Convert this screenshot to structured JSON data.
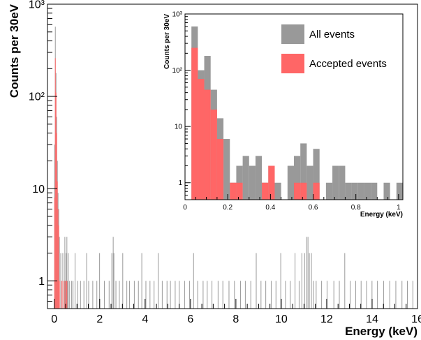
{
  "colors": {
    "all_events": "#999999",
    "accepted_events": "#ff6666",
    "axis": "#000000",
    "background": "#ffffff"
  },
  "chart_data": [
    {
      "type": "bar",
      "title": "",
      "xlabel": "Energy (keV)",
      "ylabel": "Counts per 30eV",
      "y_scale": "log",
      "xlim": [
        -0.3,
        16
      ],
      "ylim": [
        0.5,
        1000
      ],
      "x_ticks": [
        "0",
        "2",
        "4",
        "6",
        "8",
        "10",
        "12",
        "14",
        "16"
      ],
      "y_ticks": [
        "1",
        "10",
        "10²",
        "10³"
      ],
      "bin_width_keV": 0.03,
      "grid": false,
      "legend": "none",
      "series": [
        {
          "name": "All events",
          "color": "#999999",
          "bins": [
            [
              0.0,
              30
            ],
            [
              0.03,
              570
            ],
            [
              0.06,
              180
            ],
            [
              0.09,
              60
            ],
            [
              0.12,
              20
            ],
            [
              0.15,
              9
            ],
            [
              0.18,
              6
            ],
            [
              0.21,
              3
            ],
            [
              0.27,
              2
            ],
            [
              0.3,
              1
            ],
            [
              0.36,
              2
            ],
            [
              0.42,
              1
            ],
            [
              0.45,
              3
            ],
            [
              0.48,
              1
            ],
            [
              0.51,
              2
            ],
            [
              0.54,
              3
            ],
            [
              0.57,
              1
            ],
            [
              0.6,
              2
            ],
            [
              0.66,
              1
            ],
            [
              0.75,
              1
            ],
            [
              0.81,
              1
            ],
            [
              0.9,
              2
            ],
            [
              1.02,
              1
            ],
            [
              1.14,
              1
            ],
            [
              1.29,
              1
            ],
            [
              1.41,
              2
            ],
            [
              1.5,
              1
            ],
            [
              1.68,
              1
            ],
            [
              1.86,
              1
            ],
            [
              1.98,
              2
            ],
            [
              2.19,
              1
            ],
            [
              2.4,
              1
            ],
            [
              2.52,
              2
            ],
            [
              2.58,
              3
            ],
            [
              2.61,
              2
            ],
            [
              2.7,
              1
            ],
            [
              2.85,
              1
            ],
            [
              3.0,
              2
            ],
            [
              3.18,
              1
            ],
            [
              3.3,
              1
            ],
            [
              3.51,
              1
            ],
            [
              3.69,
              1
            ],
            [
              3.84,
              2
            ],
            [
              4.02,
              1
            ],
            [
              4.2,
              1
            ],
            [
              4.38,
              1
            ],
            [
              4.56,
              2
            ],
            [
              4.74,
              1
            ],
            [
              4.95,
              1
            ],
            [
              5.1,
              1
            ],
            [
              5.31,
              1
            ],
            [
              5.49,
              1
            ],
            [
              5.73,
              1
            ],
            [
              5.94,
              1
            ],
            [
              6.12,
              2
            ],
            [
              6.3,
              1
            ],
            [
              6.54,
              1
            ],
            [
              6.72,
              1
            ],
            [
              6.93,
              1
            ],
            [
              7.2,
              1
            ],
            [
              7.41,
              1
            ],
            [
              7.68,
              1
            ],
            [
              7.92,
              1
            ],
            [
              8.19,
              1
            ],
            [
              8.4,
              1
            ],
            [
              8.64,
              1
            ],
            [
              8.88,
              2
            ],
            [
              9.09,
              1
            ],
            [
              9.3,
              1
            ],
            [
              9.54,
              1
            ],
            [
              9.75,
              1
            ],
            [
              9.96,
              2
            ],
            [
              10.17,
              1
            ],
            [
              10.38,
              1
            ],
            [
              10.59,
              2
            ],
            [
              10.77,
              1
            ],
            [
              10.89,
              2
            ],
            [
              11.01,
              2
            ],
            [
              11.1,
              3
            ],
            [
              11.16,
              3
            ],
            [
              11.22,
              2
            ],
            [
              11.31,
              2
            ],
            [
              11.4,
              1
            ],
            [
              11.52,
              1
            ],
            [
              11.76,
              1
            ],
            [
              12.0,
              1
            ],
            [
              12.3,
              1
            ],
            [
              12.54,
              1
            ],
            [
              12.78,
              2
            ],
            [
              13.02,
              1
            ],
            [
              13.26,
              1
            ],
            [
              13.5,
              1
            ],
            [
              13.74,
              1
            ],
            [
              13.98,
              1
            ],
            [
              14.22,
              1
            ],
            [
              14.49,
              1
            ],
            [
              14.76,
              1
            ],
            [
              15.03,
              1
            ],
            [
              15.3,
              1
            ],
            [
              15.54,
              1
            ],
            [
              15.78,
              1
            ]
          ]
        },
        {
          "name": "Accepted events",
          "color": "#ff6666",
          "bins": [
            [
              0.0,
              8
            ],
            [
              0.03,
              260
            ],
            [
              0.06,
              110
            ],
            [
              0.09,
              40
            ],
            [
              0.12,
              12
            ],
            [
              0.15,
              6
            ],
            [
              0.18,
              4
            ],
            [
              0.21,
              1
            ],
            [
              0.3,
              1
            ],
            [
              0.36,
              1
            ],
            [
              0.45,
              1
            ],
            [
              0.51,
              1
            ],
            [
              0.54,
              1
            ]
          ]
        }
      ]
    },
    {
      "type": "bar",
      "title": "",
      "xlabel": "Energy (keV)",
      "ylabel": "Counts per 30eV",
      "y_scale": "log",
      "xlim": [
        0,
        1.02
      ],
      "ylim": [
        0.5,
        1000
      ],
      "x_ticks": [
        "0",
        "0.2",
        "0.4",
        "0.6",
        "0.8",
        "1"
      ],
      "y_ticks": [
        "1",
        "10",
        "10²",
        "10³"
      ],
      "bin_width_keV": 0.03,
      "grid": false,
      "legend": "top-right",
      "series": [
        {
          "name": "All events",
          "color": "#999999",
          "bins": [
            [
              0.03,
              600
            ],
            [
              0.06,
              100
            ],
            [
              0.09,
              180
            ],
            [
              0.12,
              45
            ],
            [
              0.15,
              14
            ],
            [
              0.18,
              6
            ],
            [
              0.21,
              1
            ],
            [
              0.24,
              2
            ],
            [
              0.27,
              3
            ],
            [
              0.3,
              2
            ],
            [
              0.33,
              3
            ],
            [
              0.36,
              1
            ],
            [
              0.39,
              2
            ],
            [
              0.42,
              1
            ],
            [
              0.48,
              2
            ],
            [
              0.51,
              3
            ],
            [
              0.54,
              5
            ],
            [
              0.57,
              2
            ],
            [
              0.6,
              4
            ],
            [
              0.66,
              1
            ],
            [
              0.69,
              2
            ],
            [
              0.72,
              2
            ],
            [
              0.75,
              1
            ],
            [
              0.78,
              1
            ],
            [
              0.81,
              1
            ],
            [
              0.84,
              1
            ],
            [
              0.87,
              1
            ],
            [
              0.93,
              1
            ],
            [
              0.99,
              1
            ]
          ]
        },
        {
          "name": "Accepted events",
          "color": "#ff6666",
          "bins": [
            [
              0.03,
              250
            ],
            [
              0.06,
              70
            ],
            [
              0.09,
              45
            ],
            [
              0.12,
              20
            ],
            [
              0.15,
              6
            ],
            [
              0.21,
              1
            ],
            [
              0.24,
              1
            ],
            [
              0.36,
              1
            ],
            [
              0.39,
              2
            ],
            [
              0.51,
              1
            ],
            [
              0.54,
              1
            ],
            [
              0.6,
              1
            ]
          ]
        }
      ]
    }
  ]
}
